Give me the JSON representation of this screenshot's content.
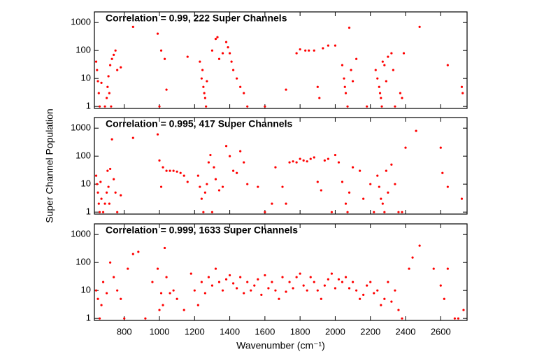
{
  "chart_data": [
    {
      "type": "scatter",
      "annotation": "Correlation = 0.99, 222 Super Channels",
      "annotation_color": "#0000ff",
      "color": "#ff0000",
      "ylog": true,
      "xlim": [
        630,
        2750
      ],
      "xticks": [
        800,
        1000,
        1200,
        1400,
        1600,
        1800,
        2000,
        2200,
        2400,
        2600
      ],
      "ylim": [
        0.85,
        2400
      ],
      "yticks": [
        1,
        10,
        100,
        1000
      ],
      "x": [
        640,
        645,
        650,
        655,
        660,
        670,
        690,
        700,
        705,
        710,
        715,
        720,
        725,
        730,
        740,
        750,
        760,
        780,
        850,
        990,
        1000,
        1010,
        1030,
        1040,
        1160,
        1230,
        1240,
        1245,
        1250,
        1255,
        1260,
        1265,
        1270,
        1300,
        1320,
        1330,
        1340,
        1360,
        1380,
        1390,
        1400,
        1410,
        1420,
        1440,
        1460,
        1480,
        1500,
        1600,
        1720,
        1780,
        1800,
        1830,
        1850,
        1880,
        1900,
        1910,
        1930,
        1960,
        2000,
        2040,
        2050,
        2055,
        2060,
        2070,
        2080,
        2090,
        2100,
        2120,
        2180,
        2230,
        2240,
        2250,
        2255,
        2260,
        2265,
        2270,
        2280,
        2290,
        2300,
        2320,
        2330,
        2340,
        2370,
        2380,
        2390,
        2480,
        2640,
        2720,
        2725
      ],
      "y": [
        40,
        20,
        8,
        3,
        1,
        7,
        1,
        2,
        5,
        12,
        3,
        30,
        1,
        50,
        70,
        100,
        20,
        25,
        700,
        400,
        1,
        100,
        50,
        4,
        60,
        40,
        10,
        20,
        5,
        3,
        2,
        1,
        8,
        100,
        260,
        300,
        50,
        80,
        200,
        130,
        80,
        40,
        20,
        10,
        5,
        3,
        1,
        1,
        4,
        80,
        110,
        100,
        100,
        100,
        5,
        2,
        120,
        150,
        150,
        30,
        10,
        5,
        3,
        1,
        650,
        20,
        8,
        50,
        1,
        20,
        10,
        5,
        3,
        2,
        1,
        40,
        30,
        8,
        60,
        80,
        20,
        1,
        3,
        2,
        80,
        700,
        30,
        5,
        3
      ]
    },
    {
      "type": "scatter",
      "annotation": "Correlation = 0.995, 417 Super Channels",
      "annotation_color": "#0000ff",
      "color": "#ff0000",
      "ylog": true,
      "ylabel": "Super Channel Population",
      "xlim": [
        630,
        2750
      ],
      "xticks": [
        800,
        1000,
        1200,
        1400,
        1600,
        1800,
        2000,
        2200,
        2400,
        2600
      ],
      "ylim": [
        0.85,
        2400
      ],
      "yticks": [
        1,
        10,
        100,
        1000
      ],
      "x": [
        640,
        645,
        650,
        655,
        660,
        665,
        670,
        680,
        690,
        700,
        705,
        710,
        715,
        720,
        730,
        740,
        750,
        760,
        780,
        850,
        990,
        1000,
        1010,
        1020,
        1040,
        1060,
        1080,
        1100,
        1120,
        1140,
        1160,
        1220,
        1230,
        1240,
        1250,
        1260,
        1270,
        1280,
        1290,
        1300,
        1310,
        1320,
        1340,
        1360,
        1380,
        1400,
        1420,
        1440,
        1460,
        1480,
        1500,
        1560,
        1600,
        1640,
        1660,
        1700,
        1720,
        1740,
        1760,
        1780,
        1800,
        1820,
        1840,
        1860,
        1880,
        1900,
        1920,
        1940,
        1960,
        1980,
        2000,
        2020,
        2040,
        2060,
        2070,
        2080,
        2100,
        2140,
        2160,
        2200,
        2220,
        2240,
        2250,
        2260,
        2270,
        2280,
        2290,
        2300,
        2320,
        2340,
        2360,
        2380,
        2400,
        2460,
        2600,
        2610,
        2640,
        2720
      ],
      "y": [
        20,
        10,
        5,
        2,
        1,
        12,
        3,
        1,
        2,
        5,
        30,
        8,
        2,
        35,
        400,
        15,
        5,
        1,
        4,
        450,
        600,
        70,
        8,
        40,
        30,
        30,
        30,
        28,
        25,
        20,
        12,
        20,
        8,
        3,
        1,
        5,
        10,
        60,
        110,
        1,
        40,
        15,
        6,
        8,
        230,
        100,
        30,
        25,
        150,
        60,
        10,
        8,
        1,
        2,
        40,
        8,
        2,
        60,
        65,
        60,
        80,
        70,
        65,
        80,
        90,
        12,
        6,
        70,
        80,
        1,
        110,
        60,
        12,
        2,
        1,
        5,
        40,
        30,
        3,
        10,
        1,
        20,
        8,
        3,
        2,
        1,
        30,
        5,
        50,
        10,
        1,
        1,
        200,
        800,
        200,
        25,
        8,
        3
      ]
    },
    {
      "type": "scatter",
      "annotation": "Correlation = 0.999, 1633 Super Channels",
      "annotation_color": "#0000ff",
      "color": "#ff0000",
      "ylog": true,
      "xlabel": "Wavenumber (cm⁻¹)",
      "xlim": [
        630,
        2750
      ],
      "xticks": [
        800,
        1000,
        1200,
        1400,
        1600,
        1800,
        2000,
        2200,
        2400,
        2600
      ],
      "ylim": [
        0.85,
        2400
      ],
      "yticks": [
        1,
        10,
        100,
        1000
      ],
      "x": [
        640,
        650,
        660,
        670,
        680,
        700,
        720,
        740,
        760,
        780,
        800,
        820,
        850,
        880,
        920,
        960,
        990,
        1000,
        1010,
        1020,
        1030,
        1040,
        1060,
        1080,
        1100,
        1140,
        1180,
        1200,
        1220,
        1240,
        1260,
        1280,
        1300,
        1320,
        1340,
        1360,
        1380,
        1400,
        1420,
        1440,
        1460,
        1480,
        1500,
        1520,
        1540,
        1560,
        1580,
        1600,
        1620,
        1640,
        1660,
        1680,
        1700,
        1720,
        1740,
        1760,
        1780,
        1800,
        1820,
        1840,
        1860,
        1880,
        1900,
        1920,
        1940,
        1960,
        1980,
        2000,
        2020,
        2040,
        2060,
        2080,
        2100,
        2120,
        2140,
        2160,
        2180,
        2200,
        2220,
        2240,
        2260,
        2280,
        2300,
        2320,
        2340,
        2360,
        2380,
        2420,
        2440,
        2480,
        2560,
        2600,
        2620,
        2640,
        2680,
        2700,
        2730
      ],
      "y": [
        10,
        5,
        1,
        3,
        20,
        8,
        100,
        30,
        10,
        5,
        1,
        60,
        200,
        240,
        1,
        20,
        60,
        2,
        8,
        3,
        330,
        30,
        8,
        10,
        5,
        2,
        40,
        10,
        3,
        20,
        8,
        30,
        15,
        60,
        20,
        10,
        25,
        35,
        18,
        12,
        30,
        8,
        20,
        10,
        15,
        25,
        7,
        35,
        12,
        20,
        10,
        5,
        30,
        9,
        20,
        12,
        30,
        40,
        15,
        10,
        30,
        20,
        10,
        5,
        15,
        25,
        40,
        12,
        25,
        20,
        30,
        12,
        20,
        10,
        5,
        7,
        15,
        20,
        8,
        10,
        3,
        5,
        20,
        4,
        10,
        2,
        1,
        60,
        150,
        400,
        60,
        15,
        5,
        60,
        1,
        1,
        2
      ]
    }
  ]
}
